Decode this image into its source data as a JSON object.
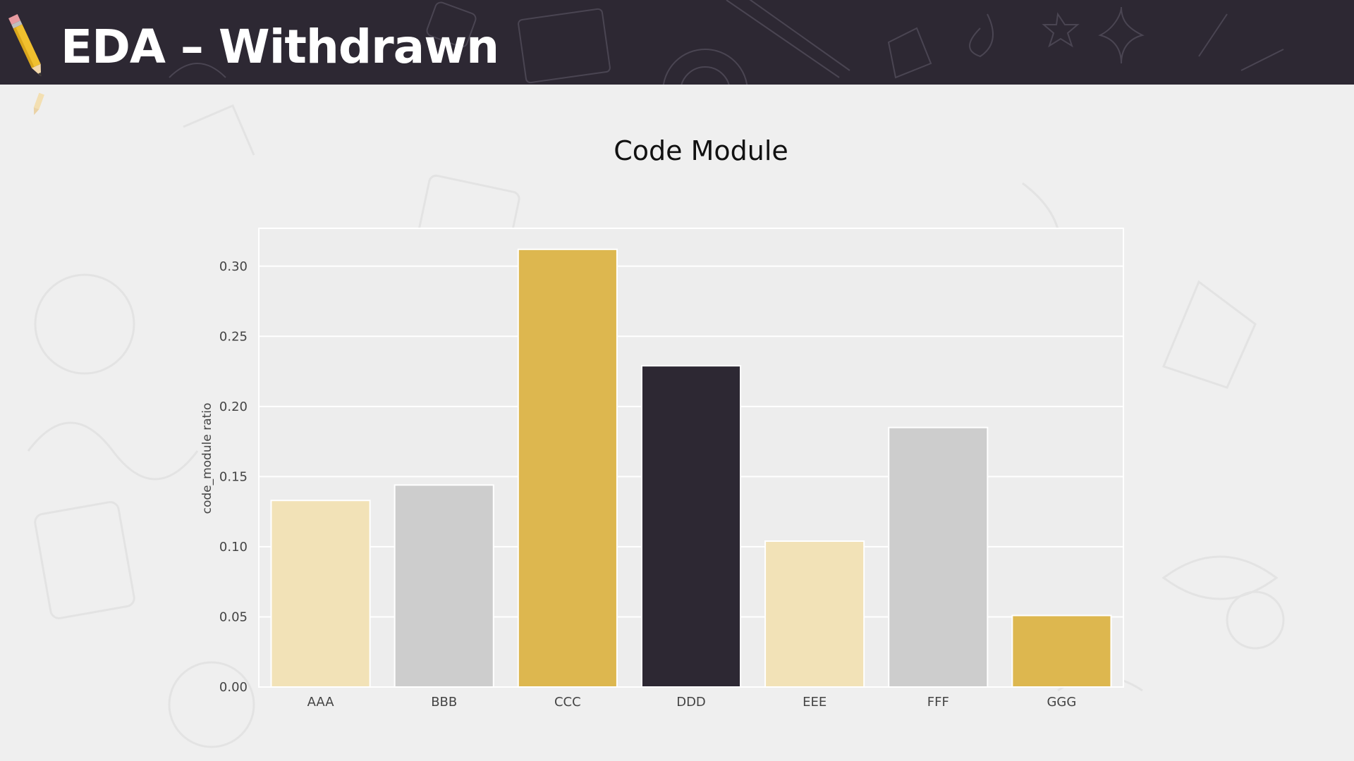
{
  "slide": {
    "title": "EDA – Withdrawn"
  },
  "chart_data": {
    "type": "bar",
    "title": "Code Module",
    "xlabel": "",
    "ylabel": "code_module ratio",
    "categories": [
      "AAA",
      "BBB",
      "CCC",
      "DDD",
      "EEE",
      "FFF",
      "GGG"
    ],
    "values": [
      0.133,
      0.144,
      0.312,
      0.229,
      0.104,
      0.185,
      0.051
    ],
    "colors": [
      "#f2e2b7",
      "#cdcdcd",
      "#ddb74f",
      "#2d2833",
      "#f2e2b7",
      "#cdcdcd",
      "#ddb74f"
    ],
    "ylim": [
      0,
      0.327
    ],
    "yticks": [
      "0.00",
      "0.05",
      "0.10",
      "0.15",
      "0.20",
      "0.25",
      "0.30"
    ],
    "grid": true
  },
  "colors": {
    "header": "#2d2833",
    "background": "#efefef",
    "accent_gold": "#ddb74f"
  }
}
